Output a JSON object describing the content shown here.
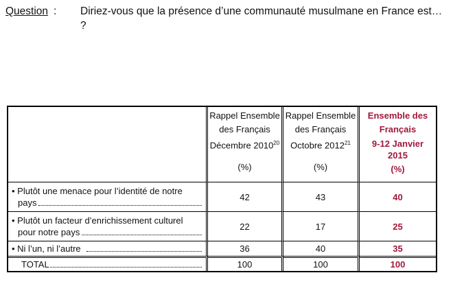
{
  "question": {
    "label": "Question",
    "colon": ":",
    "text": "Diriez-vous que la présence d’une communauté musulmane en France est… ?"
  },
  "table": {
    "columns": [
      {
        "lines": [
          "Rappel Ensemble",
          "des Français"
        ],
        "date": "Décembre 2010",
        "footnote": "20",
        "unit": "(%)",
        "highlight": false
      },
      {
        "lines": [
          "Rappel Ensemble",
          "des Français"
        ],
        "date": "Octobre 2012",
        "footnote": "21",
        "unit": "(%)",
        "highlight": false
      },
      {
        "lines": [
          "Ensemble des",
          "Français"
        ],
        "date": "9-12 Janvier 2015",
        "footnote": "",
        "unit": "(%)",
        "highlight": true
      }
    ],
    "rows": [
      {
        "label_line1": "• Plutôt une menace pour l’identité de notre",
        "label_line2": "pays",
        "values": [
          "42",
          "43",
          "40"
        ]
      },
      {
        "label_line1": "• Plutôt un facteur d’enrichissement culturel",
        "label_line2": "pour notre pays",
        "values": [
          "22",
          "17",
          "25"
        ]
      },
      {
        "label_line1": "• Ni l’un, ni l’autre",
        "label_line2": "",
        "values": [
          "36",
          "40",
          "35"
        ]
      }
    ],
    "total": {
      "label": "TOTAL",
      "values": [
        "100",
        "100",
        "100"
      ]
    }
  },
  "colors": {
    "highlight": "#a0183a"
  }
}
